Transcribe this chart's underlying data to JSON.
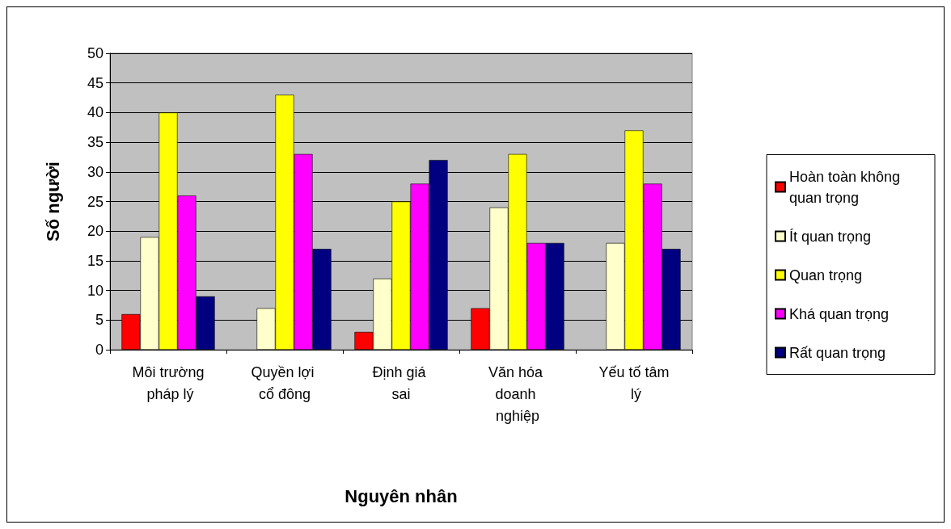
{
  "chart_data": {
    "type": "bar",
    "xlabel": "Nguyên nhân",
    "ylabel": "Số người",
    "categories": [
      "Môi trường pháp lý",
      "Quyền lợi cổ đông",
      "Định giá sai",
      "Văn hóa doanh nghiệp",
      "Yếu tố tâm lý"
    ],
    "series": [
      {
        "name": "Hoàn toàn không quan trọng",
        "color": "#ff0000",
        "values": [
          6,
          null,
          3,
          7,
          null
        ]
      },
      {
        "name": "Ít quan trọng",
        "color": "#ffffcc",
        "values": [
          19,
          7,
          12,
          24,
          18
        ]
      },
      {
        "name": "Quan trọng",
        "color": "#ffff00",
        "values": [
          40,
          43,
          25,
          33,
          37
        ]
      },
      {
        "name": "Khá quan trọng",
        "color": "#ff00ff",
        "values": [
          26,
          33,
          28,
          18,
          28
        ]
      },
      {
        "name": "Rất quan trọng",
        "color": "#000080",
        "values": [
          9,
          17,
          32,
          18,
          17
        ]
      }
    ],
    "ylim": [
      0,
      50
    ],
    "yticks": [
      0,
      5,
      10,
      15,
      20,
      25,
      30,
      35,
      40,
      45,
      50
    ],
    "grid": "y",
    "legend": "right"
  }
}
